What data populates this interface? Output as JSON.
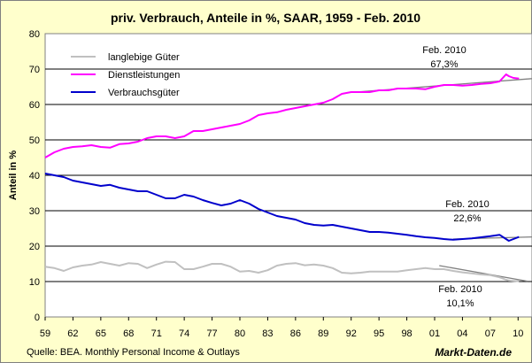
{
  "chart_data": {
    "type": "line",
    "title": "priv. Verbrauch, Anteile in %, SAAR, 1959 - Feb. 2010",
    "xlabel": "",
    "ylabel": "Anteil in %",
    "ylim": [
      0,
      80
    ],
    "yticks": [
      0,
      10,
      20,
      30,
      40,
      50,
      60,
      70,
      80
    ],
    "xlim": [
      1959,
      2011.5
    ],
    "xticks": [
      "59",
      "62",
      "65",
      "68",
      "71",
      "74",
      "77",
      "80",
      "83",
      "86",
      "89",
      "92",
      "95",
      "98",
      "01",
      "04",
      "07",
      "10"
    ],
    "grid": "horizontal",
    "legend_position": "top-left",
    "series": [
      {
        "name": "langlebige Güter",
        "color": "#c0c0c0",
        "x": [
          1959,
          1960,
          1961,
          1962,
          1963,
          1964,
          1965,
          1966,
          1967,
          1968,
          1969,
          1970,
          1971,
          1972,
          1973,
          1974,
          1975,
          1976,
          1977,
          1978,
          1979,
          1980,
          1981,
          1982,
          1983,
          1984,
          1985,
          1986,
          1987,
          1988,
          1989,
          1990,
          1991,
          1992,
          1993,
          1994,
          1995,
          1996,
          1997,
          1998,
          1999,
          2000,
          2001,
          2002,
          2003,
          2004,
          2005,
          2006,
          2007,
          2008,
          2008.7,
          2009,
          2009.5,
          2010.1
        ],
        "values": [
          14.2,
          13.8,
          13.0,
          14.0,
          14.5,
          14.8,
          15.5,
          15.0,
          14.5,
          15.2,
          15.0,
          13.8,
          14.8,
          15.6,
          15.5,
          13.5,
          13.5,
          14.2,
          15.0,
          15.0,
          14.2,
          12.8,
          13.0,
          12.5,
          13.2,
          14.5,
          15.0,
          15.2,
          14.6,
          14.8,
          14.5,
          13.8,
          12.5,
          12.3,
          12.5,
          12.8,
          12.8,
          12.8,
          12.8,
          13.2,
          13.5,
          13.8,
          13.5,
          13.5,
          13.0,
          12.6,
          12.3,
          12.0,
          11.8,
          11.2,
          10.5,
          10.3,
          10.2,
          10.1
        ]
      },
      {
        "name": "Dienstleistungen",
        "color": "#ff00ff",
        "x": [
          1959,
          1960,
          1961,
          1962,
          1963,
          1964,
          1965,
          1966,
          1967,
          1968,
          1969,
          1970,
          1971,
          1972,
          1973,
          1974,
          1975,
          1976,
          1977,
          1978,
          1979,
          1980,
          1981,
          1982,
          1983,
          1984,
          1985,
          1986,
          1987,
          1988,
          1989,
          1990,
          1991,
          1992,
          1993,
          1994,
          1995,
          1996,
          1997,
          1998,
          1999,
          2000,
          2001,
          2002,
          2003,
          2004,
          2005,
          2006,
          2007,
          2008,
          2008.7,
          2009,
          2009.5,
          2010.1
        ],
        "values": [
          45.0,
          46.5,
          47.5,
          48.0,
          48.2,
          48.5,
          48.0,
          47.8,
          48.8,
          49.0,
          49.5,
          50.5,
          51.0,
          51.0,
          50.5,
          51.0,
          52.5,
          52.5,
          53.0,
          53.5,
          54.0,
          54.5,
          55.5,
          57.0,
          57.5,
          57.8,
          58.5,
          59.0,
          59.5,
          60.0,
          60.5,
          61.5,
          63.0,
          63.5,
          63.5,
          63.5,
          64.0,
          64.0,
          64.5,
          64.5,
          64.5,
          64.3,
          65.0,
          65.5,
          65.5,
          65.3,
          65.5,
          65.8,
          66.0,
          66.5,
          68.5,
          68.0,
          67.5,
          67.3
        ]
      },
      {
        "name": "Verbrauchsgüter",
        "color": "#0000cc",
        "x": [
          1959,
          1960,
          1961,
          1962,
          1963,
          1964,
          1965,
          1966,
          1967,
          1968,
          1969,
          1970,
          1971,
          1972,
          1973,
          1974,
          1975,
          1976,
          1977,
          1978,
          1979,
          1980,
          1981,
          1982,
          1983,
          1984,
          1985,
          1986,
          1987,
          1988,
          1989,
          1990,
          1991,
          1992,
          1993,
          1994,
          1995,
          1996,
          1997,
          1998,
          1999,
          2000,
          2001,
          2002,
          2003,
          2004,
          2005,
          2006,
          2007,
          2008,
          2008.7,
          2009,
          2009.5,
          2010.1
        ],
        "values": [
          40.5,
          40.0,
          39.5,
          38.5,
          38.0,
          37.5,
          37.0,
          37.3,
          36.5,
          36.0,
          35.5,
          35.5,
          34.5,
          33.5,
          33.5,
          34.5,
          34.0,
          33.0,
          32.2,
          31.5,
          32.0,
          33.0,
          32.0,
          30.5,
          29.5,
          28.5,
          28.0,
          27.5,
          26.5,
          26.0,
          25.8,
          26.0,
          25.5,
          25.0,
          24.5,
          24.0,
          24.0,
          23.8,
          23.5,
          23.2,
          22.8,
          22.5,
          22.3,
          22.0,
          21.8,
          22.0,
          22.2,
          22.5,
          22.8,
          23.2,
          22.0,
          21.5,
          22.0,
          22.6
        ]
      }
    ],
    "trend_lines": [
      {
        "color": "#808080",
        "x": [
          1992.5,
          2011.5
        ],
        "values": [
          63.5,
          67.3
        ]
      },
      {
        "color": "#808080",
        "x": [
          2003,
          2011.5
        ],
        "values": [
          22.0,
          22.6
        ]
      },
      {
        "color": "#808080",
        "x": [
          2001.5,
          2011
        ],
        "values": [
          14.5,
          10.1
        ]
      }
    ],
    "annotations": [
      {
        "line1": "Feb. 2010",
        "line2": "67,3%"
      },
      {
        "line1": "Feb. 2010",
        "line2": "22,6%"
      },
      {
        "line1": "Feb. 2010",
        "line2": "10,1%"
      }
    ],
    "source": "Quelle: BEA. Monthly Personal Income & Outlays",
    "brand": "Markt-Daten.de"
  },
  "colors": {
    "background": "#ffffcc",
    "plot_background": "#ffffff",
    "grid": "#000000"
  }
}
